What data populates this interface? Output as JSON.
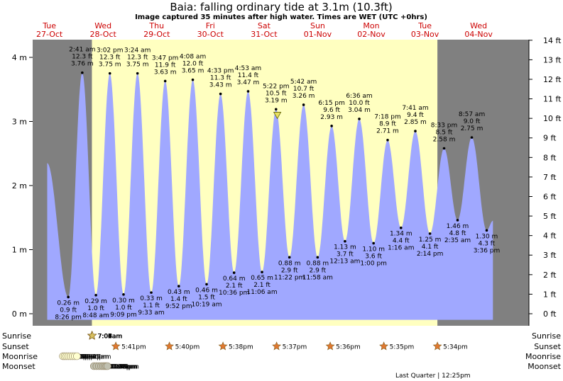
{
  "title": "Baia: falling  ordinary tide at 3.1m (10.3ft)",
  "subtitle": "Image captured 35 minutes after high water. Times are WET (UTC +0hrs)",
  "colors": {
    "night": "#808080",
    "day": "#ffffc0",
    "tide_fill": "#a0a8ff",
    "day_text": "#cc0000",
    "sun_marker": "#d8c060",
    "sunset_marker": "#e07830",
    "moonrise_marker": "#ffffd0",
    "moonset_marker": "#c0c0b0",
    "current_marker": "#e8e060"
  },
  "days": [
    {
      "dow": "Tue",
      "date": "27-Oct"
    },
    {
      "dow": "Wed",
      "date": "28-Oct"
    },
    {
      "dow": "Thu",
      "date": "29-Oct"
    },
    {
      "dow": "Fri",
      "date": "30-Oct"
    },
    {
      "dow": "Sat",
      "date": "31-Oct"
    },
    {
      "dow": "Sun",
      "date": "01-Nov"
    },
    {
      "dow": "Mon",
      "date": "02-Nov"
    },
    {
      "dow": "Tue",
      "date": "03-Nov"
    },
    {
      "dow": "Wed",
      "date": "04-Nov"
    }
  ],
  "chart_data": {
    "type": "area",
    "title": "Baia: falling  ordinary tide at 3.1m (10.3ft)",
    "ylabel_left": "m",
    "ylabel_right": "ft",
    "ylim_m": [
      -0.1,
      4.4
    ],
    "left_ticks": [
      "0 m",
      "1 m",
      "2 m",
      "3 m",
      "4 m"
    ],
    "right_ticks": [
      "0 ft",
      "1 ft",
      "2 ft",
      "3 ft",
      "4 ft",
      "5 ft",
      "6 ft",
      "7 ft",
      "8 ft",
      "9 ft",
      "10 ft",
      "11 ft",
      "12 ft",
      "13 ft",
      "14 ft"
    ],
    "start_height_m": 2.35,
    "end_height_m": 1.45,
    "current": {
      "height_m": 3.1
    },
    "extremes": [
      {
        "type": "low",
        "time": "8:26 pm",
        "m": 0.26,
        "ft": "0.9 ft",
        "m_label": "0.26 m"
      },
      {
        "type": "high",
        "time": "2:41 am",
        "m": 3.76,
        "ft": "12.3 ft",
        "m_label": "3.76 m"
      },
      {
        "type": "low",
        "time": "8:48 am",
        "m": 0.29,
        "ft": "1.0 ft",
        "m_label": "0.29 m"
      },
      {
        "type": "high",
        "time": "3:02 pm",
        "m": 3.75,
        "ft": "12.3 ft",
        "m_label": "3.75 m"
      },
      {
        "type": "low",
        "time": "9:09 pm",
        "m": 0.3,
        "ft": "1.0 ft",
        "m_label": "0.30 m"
      },
      {
        "type": "high",
        "time": "3:24 am",
        "m": 3.75,
        "ft": "12.3 ft",
        "m_label": "3.75 m"
      },
      {
        "type": "low",
        "time": "9:33 am",
        "m": 0.33,
        "ft": "1.1 ft",
        "m_label": "0.33 m"
      },
      {
        "type": "high",
        "time": "3:47 pm",
        "m": 3.63,
        "ft": "11.9 ft",
        "m_label": "3.63 m"
      },
      {
        "type": "low",
        "time": "9:52 pm",
        "m": 0.43,
        "ft": "1.4 ft",
        "m_label": "0.43 m"
      },
      {
        "type": "high",
        "time": "4:08 am",
        "m": 3.65,
        "ft": "12.0 ft",
        "m_label": "3.65 m"
      },
      {
        "type": "low",
        "time": "10:19 am",
        "m": 0.46,
        "ft": "1.5 ft",
        "m_label": "0.46 m"
      },
      {
        "type": "high",
        "time": "4:33 pm",
        "m": 3.43,
        "ft": "11.3 ft",
        "m_label": "3.43 m"
      },
      {
        "type": "low",
        "time": "10:36 pm",
        "m": 0.64,
        "ft": "2.1 ft",
        "m_label": "0.64 m"
      },
      {
        "type": "high",
        "time": "4:53 am",
        "m": 3.47,
        "ft": "11.4 ft",
        "m_label": "3.47 m"
      },
      {
        "type": "low",
        "time": "11:06 am",
        "m": 0.65,
        "ft": "2.1 ft",
        "m_label": "0.65 m"
      },
      {
        "type": "high",
        "time": "5:22 pm",
        "m": 3.19,
        "ft": "10.5 ft",
        "m_label": "3.19 m"
      },
      {
        "type": "low",
        "time": "11:22 pm",
        "m": 0.88,
        "ft": "2.9 ft",
        "m_label": "0.88 m"
      },
      {
        "type": "high",
        "time": "5:42 am",
        "m": 3.26,
        "ft": "10.7 ft",
        "m_label": "3.26 m"
      },
      {
        "type": "low",
        "time": "11:58 am",
        "m": 0.88,
        "ft": "2.9 ft",
        "m_label": "0.88 m"
      },
      {
        "type": "high",
        "time": "6:15 pm",
        "m": 2.93,
        "ft": "9.6 ft",
        "m_label": "2.93 m"
      },
      {
        "type": "low",
        "time": "12:13 am",
        "m": 1.13,
        "ft": "3.7 ft",
        "m_label": "1.13 m"
      },
      {
        "type": "high",
        "time": "6:36 am",
        "m": 3.04,
        "ft": "10.0 ft",
        "m_label": "3.04 m"
      },
      {
        "type": "low",
        "time": "1:00 pm",
        "m": 1.1,
        "ft": "3.6 ft",
        "m_label": "1.10 m"
      },
      {
        "type": "high",
        "time": "7:18 pm",
        "m": 2.71,
        "ft": "8.9 ft",
        "m_label": "2.71 m"
      },
      {
        "type": "low",
        "time": "1:16 am",
        "m": 1.34,
        "ft": "4.4 ft",
        "m_label": "1.34 m"
      },
      {
        "type": "high",
        "time": "7:41 am",
        "m": 2.85,
        "ft": "9.4 ft",
        "m_label": "2.85 m"
      },
      {
        "type": "low",
        "time": "2:14 pm",
        "m": 1.25,
        "ft": "4.1 ft",
        "m_label": "1.25 m"
      },
      {
        "type": "high",
        "time": "8:33 pm",
        "m": 2.58,
        "ft": "8.5 ft",
        "m_label": "2.58 m"
      },
      {
        "type": "low",
        "time": "2:35 am",
        "m": 1.46,
        "ft": "4.8 ft",
        "m_label": "1.46 m"
      },
      {
        "type": "high",
        "time": "8:57 am",
        "m": 2.75,
        "ft": "9.0 ft",
        "m_label": "2.75 m"
      },
      {
        "type": "low",
        "time": "3:36 pm",
        "m": 1.3,
        "ft": "4.3 ft",
        "m_label": "1.30 m"
      }
    ]
  },
  "almanac": {
    "labels": {
      "sunrise": "Sunrise",
      "sunset": "Sunset",
      "moonrise": "Moonrise",
      "moonset": "Moonset"
    },
    "sunrise": [
      "7:00am",
      "7:01am",
      "7:02am",
      "7:03am",
      "7:04am",
      "7:06am",
      "7:07am",
      "7:08am"
    ],
    "sunset": [
      "5:41pm",
      "5:40pm",
      "5:38pm",
      "5:37pm",
      "5:36pm",
      "5:35pm",
      "5:34pm"
    ],
    "moonrise": [
      "6:03pm",
      "6:48pm",
      "7:37pm",
      "8:30pm",
      "9:25pm",
      "10:22pm",
      "11:20pm",
      "12:17am"
    ],
    "moonset": [
      "7:54am",
      "9:03am",
      "10:07am",
      "11:06am",
      "11:58am",
      "12:43pm",
      "1:23pm",
      "1:58pm"
    ],
    "phase_note": "Last Quarter | 12:25pm"
  }
}
